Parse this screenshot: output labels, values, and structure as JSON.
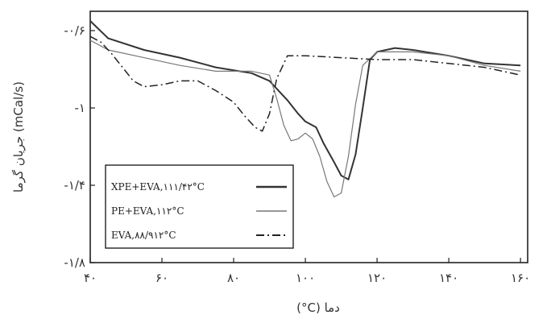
{
  "chart_data": {
    "type": "line",
    "title": "",
    "xlabel": "(°C) دما",
    "ylabel": "جریان گرما (mCal/s)",
    "xlim": [
      40,
      162
    ],
    "ylim": [
      -1.8,
      -0.5
    ],
    "x_ticks": [
      {
        "value": 40,
        "label": "۴۰"
      },
      {
        "value": 60,
        "label": "۶۰"
      },
      {
        "value": 80,
        "label": "۸۰"
      },
      {
        "value": 100,
        "label": "۱۰۰"
      },
      {
        "value": 120,
        "label": "۱۲۰"
      },
      {
        "value": 140,
        "label": "۱۴۰"
      },
      {
        "value": 160,
        "label": "۱۶۰"
      }
    ],
    "y_ticks": [
      {
        "value": -0.6,
        "label": "-۰/۶"
      },
      {
        "value": -1.0,
        "label": "-۱"
      },
      {
        "value": -1.4,
        "label": "-۱/۴"
      },
      {
        "value": -1.8,
        "label": "-۱/۸"
      }
    ],
    "legend_position": "bottom-left",
    "series": [
      {
        "name": "XPE+EVA,۱۱۱/۴۲°C",
        "style": "solid",
        "color": "#333333",
        "x": [
          40,
          45,
          55,
          65,
          75,
          85,
          90,
          95,
          98,
          100,
          103,
          105,
          108,
          110,
          112,
          114,
          116,
          118,
          120,
          125,
          130,
          140,
          150,
          160
        ],
        "y": [
          -0.55,
          -0.64,
          -0.7,
          -0.74,
          -0.79,
          -0.82,
          -0.86,
          -0.96,
          -1.03,
          -1.07,
          -1.1,
          -1.18,
          -1.28,
          -1.35,
          -1.37,
          -1.24,
          -1.0,
          -0.75,
          -0.71,
          -0.69,
          -0.7,
          -0.73,
          -0.77,
          -0.78
        ]
      },
      {
        "name": "PE+EVA,۱۱۲°C",
        "style": "solid-thin",
        "color": "#777777",
        "x": [
          40,
          45,
          55,
          65,
          75,
          85,
          90,
          92,
          94,
          96,
          98,
          100,
          102,
          104,
          106,
          108,
          110,
          112,
          114,
          116,
          120,
          130,
          140,
          150,
          160
        ],
        "y": [
          -0.65,
          -0.7,
          -0.74,
          -0.78,
          -0.81,
          -0.81,
          -0.83,
          -0.95,
          -1.09,
          -1.17,
          -1.16,
          -1.13,
          -1.16,
          -1.25,
          -1.38,
          -1.46,
          -1.44,
          -1.25,
          -0.98,
          -0.78,
          -0.71,
          -0.71,
          -0.73,
          -0.78,
          -0.81
        ]
      },
      {
        "name": "EVA,۸۸/۹۱۲°C",
        "style": "dash-dot",
        "color": "#222222",
        "x": [
          40,
          43,
          46,
          49,
          52,
          55,
          60,
          65,
          70,
          75,
          80,
          83,
          86,
          88,
          90,
          92,
          95,
          100,
          110,
          120,
          130,
          140,
          150,
          160
        ],
        "y": [
          -0.63,
          -0.66,
          -0.72,
          -0.79,
          -0.86,
          -0.89,
          -0.88,
          -0.86,
          -0.86,
          -0.91,
          -0.97,
          -1.04,
          -1.1,
          -1.12,
          -1.03,
          -0.85,
          -0.73,
          -0.73,
          -0.74,
          -0.75,
          -0.75,
          -0.77,
          -0.79,
          -0.83
        ]
      }
    ]
  }
}
